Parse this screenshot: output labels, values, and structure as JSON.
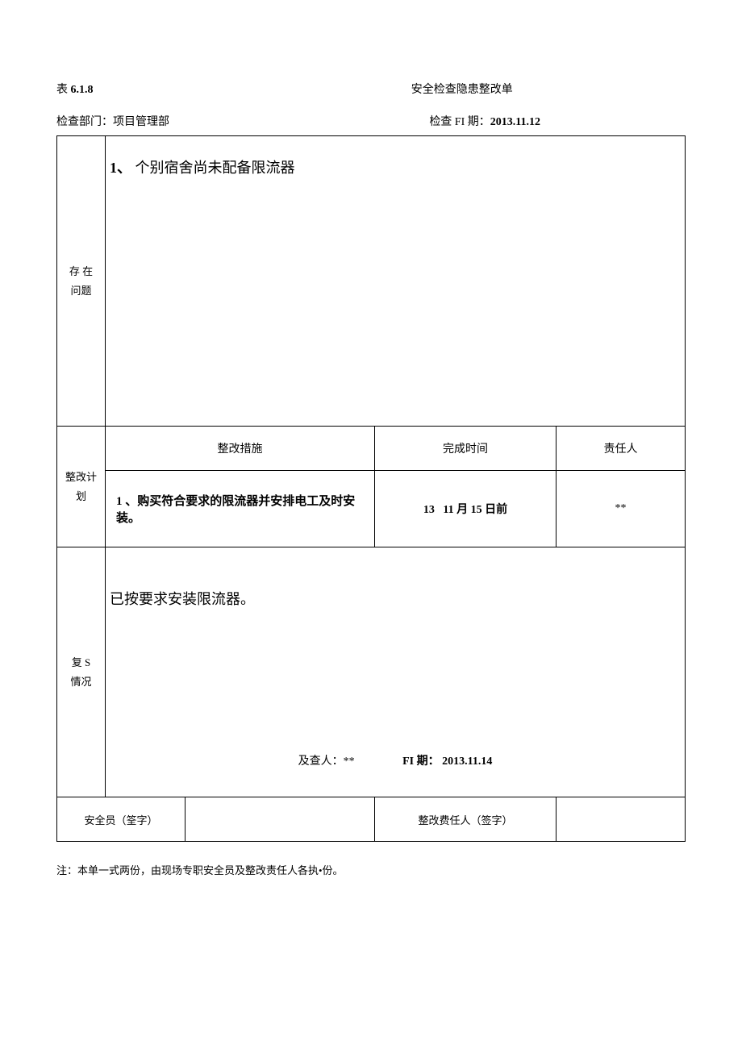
{
  "header": {
    "table_prefix": "表",
    "table_number": "6.1.8",
    "title": "安全检查隐患整改单"
  },
  "info": {
    "dept_label": "检查部门：",
    "dept_value": "项目管理部",
    "date_label": "检查 FI 期：",
    "date_value": "2013.11.12"
  },
  "problems": {
    "row_label": "存 在\n问题",
    "item_num": "1、",
    "item_text": "个别宿舍尚未配备限流器"
  },
  "plan": {
    "row_label": "整改计划",
    "col_measures": "整改措施",
    "col_time": "完成时间",
    "col_responsible": "责任人",
    "measures_text": "1 、购买符合要求的限流器并安排电工及时安装。",
    "time_prefix": "13",
    "time_text": "11 月 15 日前",
    "responsible_text": "**"
  },
  "review": {
    "row_label": "复 S\n情况",
    "text": "已按要求安装限流器。",
    "inspector_label": "及查人：",
    "inspector_value": "**",
    "date_label": "FI 期：",
    "date_value": "2013.11.14"
  },
  "sign": {
    "safety_label": "安全员（筌字）",
    "responsible_label": "整改费任人（签字）"
  },
  "footnote": "注：本单一式两份，由现场专职安全员及整改责任人各执•份。"
}
